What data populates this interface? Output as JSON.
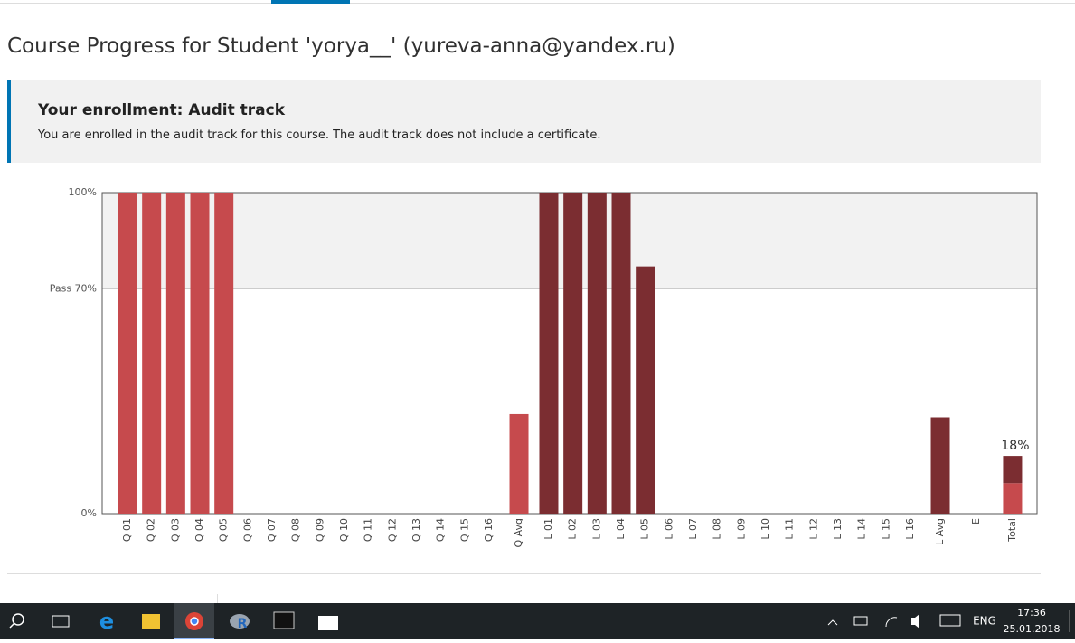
{
  "header": {
    "title": "Course Progress for Student 'yorya__' (yureva-anna@yandex.ru)"
  },
  "enrollment": {
    "heading": "Your enrollment: Audit track",
    "text": "You are enrolled in the audit track for this course. The audit track does not include a certificate."
  },
  "chart_data": {
    "type": "bar",
    "stacked": true,
    "categories": [
      "Q 01",
      "Q 02",
      "Q 03",
      "Q 04",
      "Q 05",
      "Q 06",
      "Q 07",
      "Q 08",
      "Q 09",
      "Q 10",
      "Q 11",
      "Q 12",
      "Q 13",
      "Q 14",
      "Q 15",
      "Q 16",
      "Q Avg",
      "L 01",
      "L 02",
      "L 03",
      "L 04",
      "L 05",
      "L 06",
      "L 07",
      "L 08",
      "L 09",
      "L 10",
      "L 11",
      "L 12",
      "L 13",
      "L 14",
      "L 15",
      "L 16",
      "L Avg",
      "E",
      "Total"
    ],
    "series": [
      {
        "color": "#c64a4d",
        "values": [
          100,
          100,
          100,
          100,
          100,
          0,
          0,
          0,
          0,
          0,
          0,
          0,
          0,
          0,
          0,
          0,
          31,
          null,
          null,
          null,
          null,
          null,
          null,
          null,
          null,
          null,
          null,
          null,
          null,
          null,
          null,
          null,
          null,
          null,
          null,
          9.5
        ]
      },
      {
        "color": "#7b2d31",
        "values": [
          null,
          null,
          null,
          null,
          null,
          null,
          null,
          null,
          null,
          null,
          null,
          null,
          null,
          null,
          null,
          null,
          null,
          100,
          100,
          100,
          100,
          77,
          0,
          0,
          0,
          0,
          0,
          0,
          0,
          0,
          0,
          0,
          0,
          30,
          0,
          8.5
        ]
      }
    ],
    "total_label": "18%",
    "ylim": [
      0,
      100
    ],
    "yticks": [
      {
        "value": 0,
        "label": "0%"
      },
      {
        "value": 70,
        "label": "Pass 70%"
      },
      {
        "value": 100,
        "label": "100%"
      }
    ]
  },
  "taskbar": {
    "language": "ENG",
    "time": "17:36",
    "date": "25.01.2018"
  }
}
